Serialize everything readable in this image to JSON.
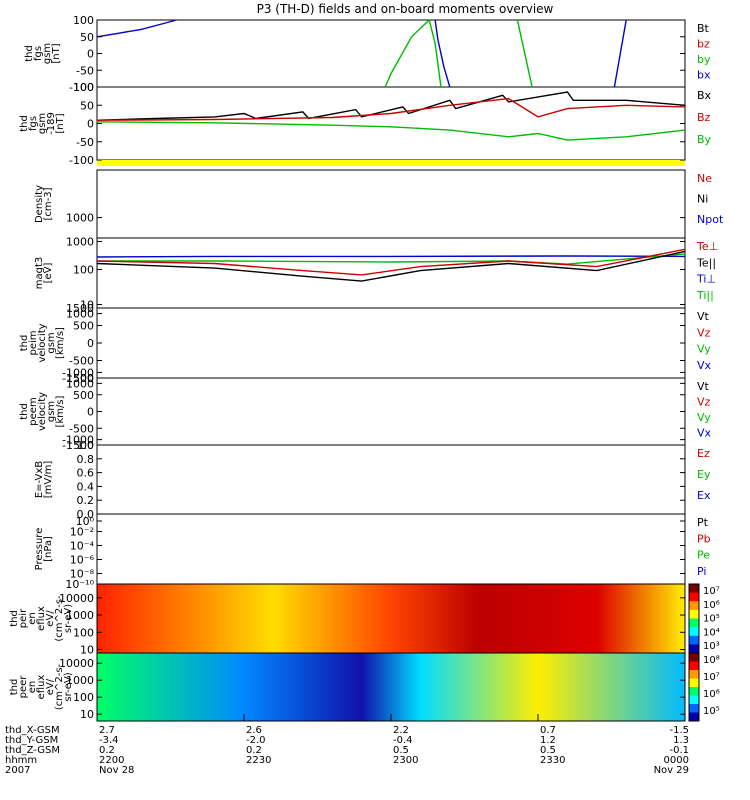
{
  "chart_data": {
    "type": "line",
    "title": "P3 (TH-D) fields and on-board moments overview",
    "colorbar_colors": [
      "#7a0000",
      "#ff0000",
      "#ff9900",
      "#ffff00",
      "#00ff66",
      "#00ffff",
      "#0066ff",
      "#0000aa"
    ],
    "panels": [
      {
        "id": "fgs",
        "ylabel": [
          "thd",
          "fgs",
          "gsm",
          "[nT]"
        ],
        "yticks": [
          "100",
          "50",
          "0",
          "-50",
          "-100"
        ],
        "legend": [
          {
            "name": "Bt",
            "color": "#000000"
          },
          {
            "name": "bz",
            "color": "#cc0000"
          },
          {
            "name": "by",
            "color": "#00bb00"
          },
          {
            "name": "bx",
            "color": "#0000cc"
          }
        ]
      },
      {
        "id": "fgs2",
        "ylabel": [
          "thd",
          "fgs",
          "gsm",
          "-189",
          "[nT]"
        ],
        "yticks": [
          "100",
          "50",
          "0",
          "-50",
          "-100"
        ],
        "legend": [
          {
            "name": "Bx",
            "color": "#000000"
          },
          {
            "name": "Bz",
            "color": "#cc0000"
          },
          {
            "name": "By",
            "color": "#00bb00"
          }
        ]
      },
      {
        "id": "density",
        "ylabel": [
          "Density",
          "[cm-3]"
        ],
        "yticks": [
          "1000"
        ],
        "legend": [
          {
            "name": "Ne",
            "color": "#cc0000"
          },
          {
            "name": "Ni",
            "color": "#000000"
          },
          {
            "name": "Npot",
            "color": "#0000cc"
          }
        ]
      },
      {
        "id": "temp",
        "ylabel": [
          "magt3",
          "[eV]"
        ],
        "yticks": [
          "1000",
          "100",
          "10"
        ],
        "legend": [
          {
            "name": "Te⊥",
            "color": "#cc0000"
          },
          {
            "name": "Te||",
            "color": "#000000"
          },
          {
            "name": "Ti⊥",
            "color": "#0000cc"
          },
          {
            "name": "Ti||",
            "color": "#00bb00"
          }
        ]
      },
      {
        "id": "peim",
        "ylabel": [
          "thd",
          "peim",
          "velocity",
          "gsm",
          "[km/s]"
        ],
        "yticks": [
          "1500",
          "1000",
          "500",
          "0",
          "-500",
          "-1000",
          "-1500"
        ],
        "legend": [
          {
            "name": "Vt",
            "color": "#000000"
          },
          {
            "name": "Vz",
            "color": "#cc0000"
          },
          {
            "name": "Vy",
            "color": "#00bb00"
          },
          {
            "name": "Vx",
            "color": "#0000cc"
          }
        ]
      },
      {
        "id": "peem",
        "ylabel": [
          "thd",
          "peem",
          "velocity",
          "gsm",
          "[km/s]"
        ],
        "yticks": [
          "1500",
          "1000",
          "500",
          "0",
          "-500",
          "-1000",
          "-1500"
        ],
        "legend": [
          {
            "name": "Vt",
            "color": "#000000"
          },
          {
            "name": "Vz",
            "color": "#cc0000"
          },
          {
            "name": "Vy",
            "color": "#00bb00"
          },
          {
            "name": "Vx",
            "color": "#0000cc"
          }
        ]
      },
      {
        "id": "efield",
        "ylabel": [
          "E=-VxB",
          "[mV/m]"
        ],
        "yticks": [
          "1.0",
          "0.8",
          "0.6",
          "0.4",
          "0.2",
          "0.0"
        ],
        "legend": [
          {
            "name": "Ez",
            "color": "#cc0000"
          },
          {
            "name": "Ey",
            "color": "#00bb00"
          },
          {
            "name": "Ex",
            "color": "#0000cc"
          }
        ]
      },
      {
        "id": "pressure",
        "ylabel": [
          "Pressure",
          "[nPa]"
        ],
        "yticks": [
          "10⁰",
          "10⁻²",
          "10⁻⁴",
          "10⁻⁶",
          "10⁻⁸",
          "10⁻¹⁰"
        ],
        "legend": [
          {
            "name": "Pt",
            "color": "#000000"
          },
          {
            "name": "Pb",
            "color": "#cc0000"
          },
          {
            "name": "Pe",
            "color": "#00bb00"
          },
          {
            "name": "Pi",
            "color": "#0000cc"
          }
        ]
      },
      {
        "id": "peir",
        "ylabel": [
          "thd",
          "peir",
          "en",
          "eflux",
          "eV/",
          "(cm^2-s-",
          "sr-eV)"
        ],
        "yticks": [
          "10000",
          "1000",
          "100",
          "10"
        ],
        "colorbar": [
          "10⁷",
          "10⁶",
          "10⁵",
          "10⁴",
          "10³"
        ]
      },
      {
        "id": "peer",
        "ylabel": [
          "thd",
          "peer",
          "en",
          "eflux",
          "eV/",
          "(cm^2-s-",
          "sr-eV)"
        ],
        "yticks": [
          "10000",
          "1000",
          "100",
          "10"
        ],
        "colorbar": [
          "10⁸",
          "10⁷",
          "10⁶",
          "10⁵"
        ]
      }
    ],
    "series": [
      {
        "panel": 0,
        "name": "bx",
        "color": "#0000cc",
        "x": [
          0,
          0.035,
          0.075,
          0.11,
          0.135
        ],
        "y": [
          50,
          60,
          72,
          88,
          100
        ]
      },
      {
        "panel": 0,
        "name": "by",
        "color": "#00bb00",
        "x": [
          0.49,
          0.5,
          0.535,
          0.565,
          0.575,
          0.585
        ],
        "y": [
          -100,
          -60,
          50,
          100,
          30,
          -100
        ]
      },
      {
        "panel": 0,
        "name": "bx",
        "color": "#0000cc",
        "x": [
          0.575,
          0.58,
          0.59,
          0.6
        ],
        "y": [
          100,
          40,
          -40,
          -100
        ]
      },
      {
        "panel": 0,
        "name": "by",
        "color": "#00bb00",
        "x": [
          0.715,
          0.725,
          0.74
        ],
        "y": [
          100,
          20,
          -100
        ]
      },
      {
        "panel": 0,
        "name": "bx",
        "color": "#0000cc",
        "x": [
          0.88,
          0.89,
          0.9
        ],
        "y": [
          -100,
          0,
          100
        ]
      },
      {
        "panel": 1,
        "name": "Bx",
        "color": "#000000",
        "x": [
          0,
          0.1,
          0.2,
          0.25,
          0.27,
          0.35,
          0.36,
          0.44,
          0.45,
          0.52,
          0.53,
          0.6,
          0.61,
          0.69,
          0.7,
          0.8,
          0.81,
          0.9,
          1.0
        ],
        "y": [
          0,
          5,
          10,
          20,
          5,
          25,
          5,
          32,
          10,
          40,
          20,
          60,
          35,
          75,
          55,
          85,
          60,
          60,
          45
        ]
      },
      {
        "panel": 1,
        "name": "Bz",
        "color": "#cc0000",
        "x": [
          0,
          0.2,
          0.4,
          0.5,
          0.6,
          0.7,
          0.75,
          0.8,
          0.9,
          1.0
        ],
        "y": [
          0,
          2,
          8,
          20,
          45,
          65,
          10,
          35,
          45,
          40
        ]
      },
      {
        "panel": 1,
        "name": "By",
        "color": "#00bb00",
        "x": [
          0,
          0.2,
          0.4,
          0.5,
          0.6,
          0.7,
          0.75,
          0.8,
          0.9,
          1.0
        ],
        "y": [
          -5,
          -8,
          -15,
          -20,
          -30,
          -50,
          -40,
          -60,
          -50,
          -30
        ]
      },
      {
        "panel": 3,
        "name": "Ti⊥",
        "color": "#0000cc",
        "x": [
          0,
          0.2,
          0.5,
          0.8,
          1.0
        ],
        "y": [
          400,
          420,
          420,
          430,
          420
        ]
      },
      {
        "panel": 3,
        "name": "Ti||",
        "color": "#00bb00",
        "x": [
          0,
          0.2,
          0.5,
          0.7,
          0.8,
          1.0
        ],
        "y": [
          300,
          300,
          280,
          300,
          240,
          500
        ]
      },
      {
        "panel": 3,
        "name": "Te⊥",
        "color": "#cc0000",
        "x": [
          0,
          0.2,
          0.35,
          0.45,
          0.55,
          0.7,
          0.85,
          1.0
        ],
        "y": [
          300,
          250,
          150,
          110,
          200,
          300,
          200,
          700
        ]
      },
      {
        "panel": 3,
        "name": "Te||",
        "color": "#000000",
        "x": [
          0,
          0.2,
          0.35,
          0.45,
          0.55,
          0.7,
          0.85,
          1.0
        ],
        "y": [
          250,
          180,
          100,
          70,
          150,
          250,
          150,
          600
        ]
      }
    ],
    "xaxis": {
      "rows": [
        {
          "label": "thd_X-GSM",
          "values": [
            "2.7",
            "2.6",
            "2.2",
            "0.7",
            "-1.5"
          ]
        },
        {
          "label": "thd_Y-GSM",
          "values": [
            "-3.4",
            "-2.0",
            "-0.4",
            "1.2",
            "1.3"
          ]
        },
        {
          "label": "thd_Z-GSM",
          "values": [
            "0.2",
            "0.2",
            "0.5",
            "0.5",
            "-0.1"
          ]
        },
        {
          "label": "hhmm",
          "values": [
            "2200",
            "2230",
            "2300",
            "2330",
            "0000"
          ]
        }
      ],
      "date_row": {
        "label": "2007",
        "values": [
          "Nov 28",
          "Nov 29"
        ]
      }
    }
  }
}
